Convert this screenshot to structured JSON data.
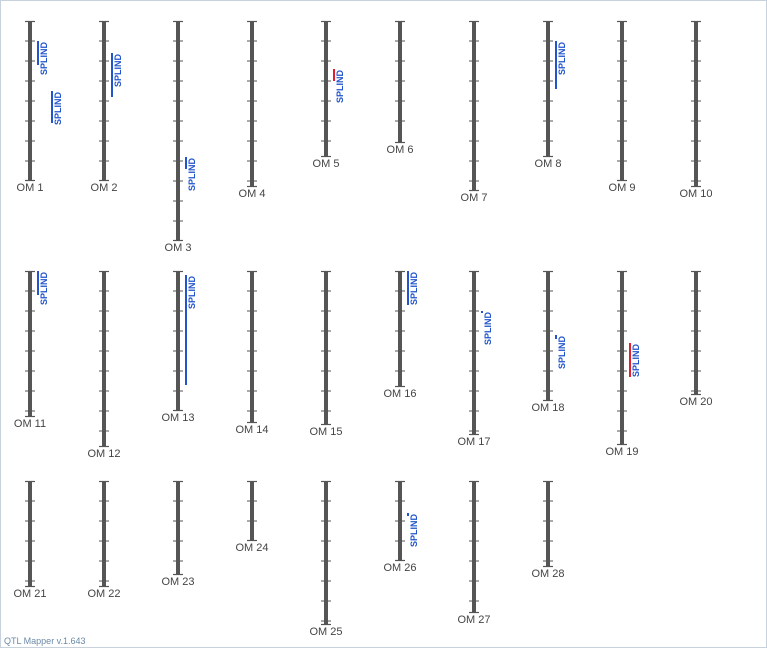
{
  "app": {
    "version_label": "QTL Mapper v.1.643"
  },
  "colors": {
    "chromosome": "#555555",
    "qtl_blue": "#2255cc",
    "qtl_red": "#e0202a",
    "label": "#444444"
  },
  "chromosomes": [
    {
      "name": "OM 1",
      "length": 8,
      "qtls": [
        {
          "label": "SPLIND",
          "start": 1,
          "end": 2.2,
          "color": "blue"
        },
        {
          "label": "SPLIND",
          "start": 3.5,
          "end": 5.1,
          "color": "blue"
        }
      ]
    },
    {
      "name": "OM 2",
      "length": 8,
      "qtls": [
        {
          "label": "SPLIND",
          "start": 1.6,
          "end": 3.8,
          "color": "blue"
        }
      ]
    },
    {
      "name": "OM 3",
      "length": 11,
      "qtls": [
        {
          "label": "SPLIND",
          "start": 6.8,
          "end": 7.4,
          "color": "blue"
        }
      ]
    },
    {
      "name": "OM 4",
      "length": 8.3,
      "qtls": []
    },
    {
      "name": "OM 5",
      "length": 6.8,
      "qtls": [
        {
          "label": "SPLIND",
          "start": 2.4,
          "end": 3.0,
          "color": "red"
        }
      ]
    },
    {
      "name": "OM 6",
      "length": 6.1,
      "qtls": []
    },
    {
      "name": "OM 7",
      "length": 8.5,
      "qtls": []
    },
    {
      "name": "OM 8",
      "length": 6.8,
      "qtls": [
        {
          "label": "SPLIND",
          "start": 1,
          "end": 3.4,
          "color": "blue"
        }
      ]
    },
    {
      "name": "OM 9",
      "length": 8,
      "qtls": []
    },
    {
      "name": "OM 10",
      "length": 8.3,
      "qtls": []
    },
    {
      "name": "OM 11",
      "length": 7.3,
      "qtls": [
        {
          "label": "SPLIND",
          "start": 0,
          "end": 1.2,
          "color": "blue"
        }
      ]
    },
    {
      "name": "OM 12",
      "length": 8.8,
      "qtls": []
    },
    {
      "name": "OM 13",
      "length": 7,
      "qtls": [
        {
          "label": "SPLIND",
          "start": 0.2,
          "end": 5.7,
          "color": "blue"
        }
      ]
    },
    {
      "name": "OM 14",
      "length": 7.6,
      "qtls": []
    },
    {
      "name": "OM 15",
      "length": 7.7,
      "qtls": []
    },
    {
      "name": "OM 16",
      "length": 5.8,
      "qtls": [
        {
          "label": "SPLIND",
          "start": 0,
          "end": 1.7,
          "color": "blue"
        }
      ]
    },
    {
      "name": "OM 17",
      "length": 8.2,
      "qtls": [
        {
          "label": "SPLIND",
          "start": 2.0,
          "end": 2.1,
          "color": "blue"
        }
      ]
    },
    {
      "name": "OM 18",
      "length": 6.5,
      "qtls": [
        {
          "label": "SPLIND",
          "start": 3.2,
          "end": 3.4,
          "color": "blue"
        }
      ]
    },
    {
      "name": "OM 19",
      "length": 8.7,
      "qtls": [
        {
          "label": "SPLIND",
          "start": 3.6,
          "end": 5.3,
          "color": "red"
        }
      ]
    },
    {
      "name": "OM 20",
      "length": 6.2,
      "qtls": []
    },
    {
      "name": "OM 21",
      "length": 5.3,
      "qtls": []
    },
    {
      "name": "OM 22",
      "length": 5.3,
      "qtls": []
    },
    {
      "name": "OM 23",
      "length": 4.7,
      "qtls": []
    },
    {
      "name": "OM 24",
      "length": 3,
      "qtls": []
    },
    {
      "name": "OM 25",
      "length": 7.2,
      "qtls": []
    },
    {
      "name": "OM 26",
      "length": 4,
      "qtls": [
        {
          "label": "SPLIND",
          "start": 1.6,
          "end": 1.75,
          "color": "blue"
        }
      ]
    },
    {
      "name": "OM 27",
      "length": 6.6,
      "qtls": []
    },
    {
      "name": "OM 28",
      "length": 4.3,
      "qtls": []
    }
  ]
}
